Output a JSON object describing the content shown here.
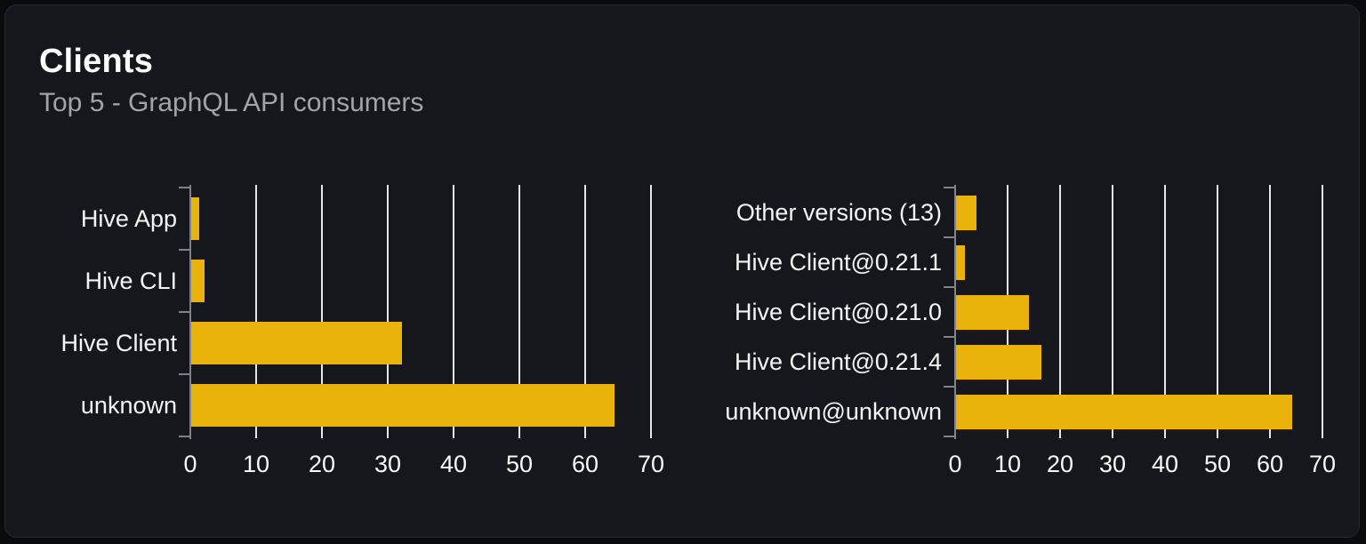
{
  "card": {
    "title": "Clients",
    "subtitle": "Top 5 - GraphQL API consumers"
  },
  "colors": {
    "bar": "#e9b30c",
    "card_background": "#15171c",
    "page_background": "#0a0b0d",
    "card_border": "#26282e",
    "gridline": "#e6e6ee",
    "axis": "#82828a",
    "label_text": "#f5f5f6",
    "tick_text": "#fafafa",
    "title_text": "#ffffff",
    "subtitle_text": "#a3a3aa"
  },
  "chart_data": [
    {
      "type": "bar",
      "orientation": "horizontal",
      "name": "clients-by-name",
      "categories": [
        "Hive App",
        "Hive CLI",
        "Hive Client",
        "unknown"
      ],
      "values": [
        1.4,
        2.2,
        32.2,
        64.4
      ],
      "xlabel": "",
      "ylabel": "",
      "xlim": [
        0,
        70
      ],
      "xticks": [
        0,
        10,
        20,
        30,
        40,
        50,
        60,
        70
      ],
      "grid": true,
      "legend": false
    },
    {
      "type": "bar",
      "orientation": "horizontal",
      "name": "clients-by-version",
      "categories": [
        "Other versions (13)",
        "Hive Client@0.21.1",
        "Hive Client@0.21.0",
        "Hive Client@0.21.4",
        "unknown@unknown"
      ],
      "values": [
        4.0,
        1.8,
        14.0,
        16.5,
        64.3
      ],
      "xlabel": "",
      "ylabel": "",
      "xlim": [
        0,
        70
      ],
      "xticks": [
        0,
        10,
        20,
        30,
        40,
        50,
        60,
        70
      ],
      "grid": true,
      "legend": false
    }
  ]
}
